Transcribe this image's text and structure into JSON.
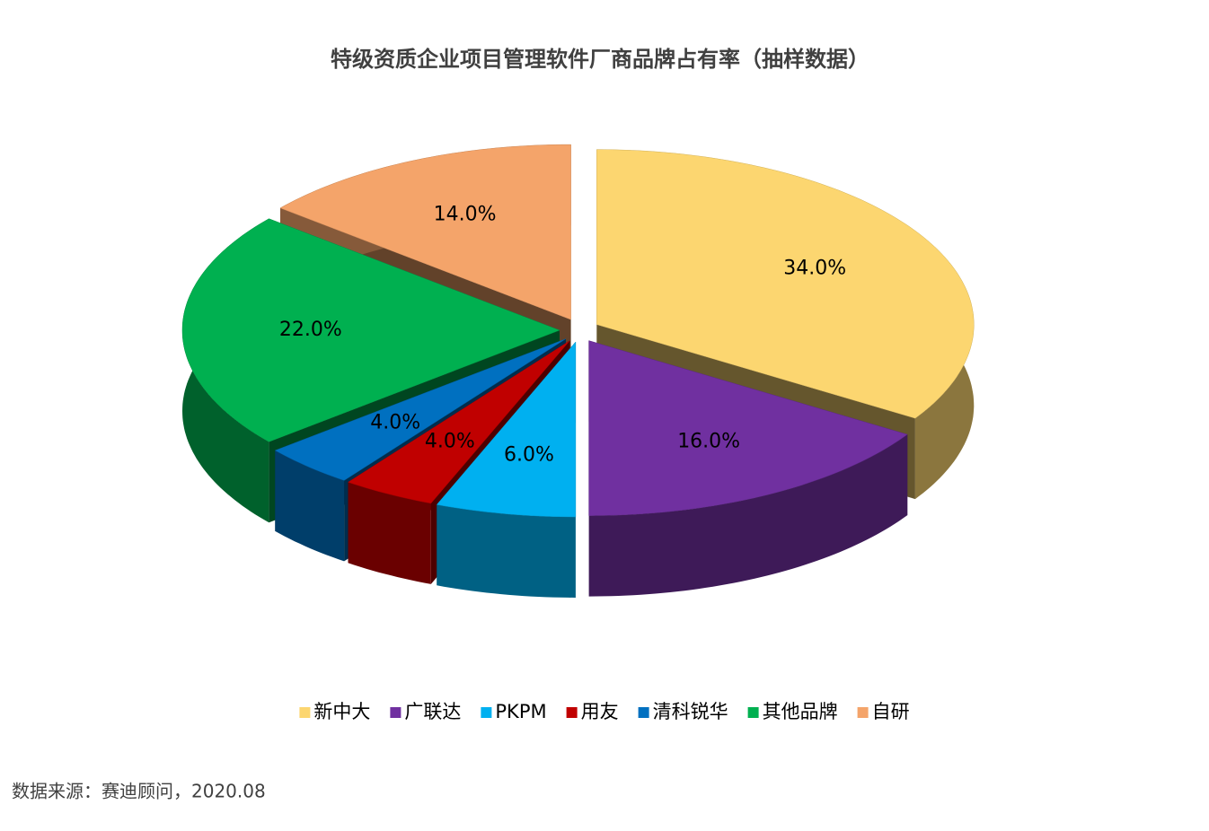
{
  "chart_data": {
    "type": "pie",
    "title": "特级资质企业项目管理软件厂商品牌占有率（抽样数据）",
    "categories": [
      "新中大",
      "广联达",
      "PKPM",
      "用友",
      "清科锐华",
      "其他品牌",
      "自研"
    ],
    "values": [
      34,
      16,
      6,
      4,
      4,
      22,
      14
    ],
    "value_labels": [
      "34.0%",
      "16.0%",
      "6.0%",
      "4.0%",
      "4.0%",
      "22.0%",
      "14.0%"
    ],
    "colors": [
      "#FCD670",
      "#7030A0",
      "#00B0F0",
      "#C00000",
      "#0070C0",
      "#00B050",
      "#F4A46A"
    ],
    "legend": "bottom",
    "source": "数据来源：赛迪顾问，2020.08"
  }
}
